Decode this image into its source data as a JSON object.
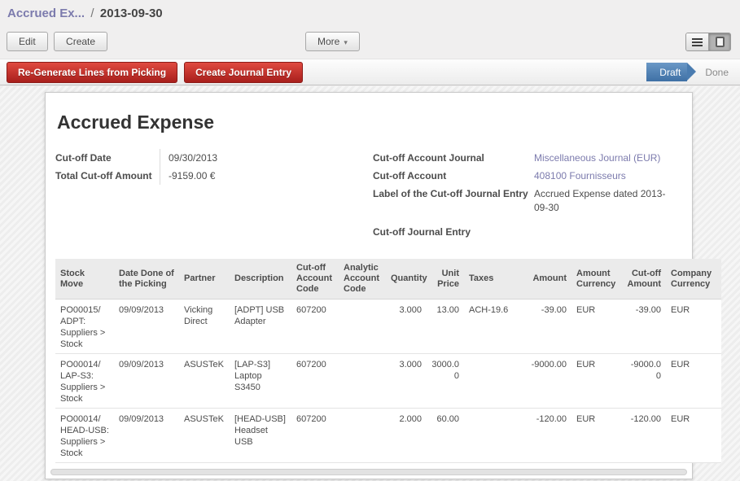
{
  "breadcrumb": {
    "parent": "Accrued Ex...",
    "separator": "/",
    "current": "2013-09-30"
  },
  "toolbar": {
    "edit_label": "Edit",
    "create_label": "Create",
    "more_label": "More"
  },
  "icons": {
    "dropdown_caret": "▾",
    "list_view": "hamburger-lines",
    "form_view": "rounded-square",
    "status_arrow": "right-chevron"
  },
  "actions": {
    "regenerate_label": "Re-Generate Lines from Picking",
    "create_journal_label": "Create Journal Entry"
  },
  "statusbar": {
    "states": [
      {
        "label": "Draft",
        "active": true
      },
      {
        "label": "Done",
        "active": false
      }
    ]
  },
  "form": {
    "title": "Accrued Expense",
    "fields_left": [
      {
        "label": "Cut-off Date",
        "value": "09/30/2013"
      },
      {
        "label": "Total Cut-off Amount",
        "value": "-9159.00 €"
      }
    ],
    "fields_right": [
      {
        "label": "Cut-off Account Journal",
        "value": "Miscellaneous Journal (EUR)",
        "link": true
      },
      {
        "label": "Cut-off Account",
        "value": "408100 Fournisseurs",
        "link": true
      },
      {
        "label": "Label of the Cut-off Journal Entry",
        "value": "Accrued Expense dated 2013-09-30",
        "link": false
      },
      {
        "label": "Cut-off Journal Entry",
        "value": "",
        "link": false
      }
    ]
  },
  "table": {
    "columns": [
      {
        "label": "Stock Move",
        "align": "left",
        "width": 72
      },
      {
        "label": "Date Done of the Picking",
        "align": "left",
        "width": 80
      },
      {
        "label": "Partner",
        "align": "left",
        "width": 62
      },
      {
        "label": "Description",
        "align": "left",
        "width": 76
      },
      {
        "label": "Cut-off Account Code",
        "align": "left",
        "width": 58
      },
      {
        "label": "Analytic Account Code",
        "align": "left",
        "width": 58
      },
      {
        "label": "Quantity",
        "align": "right",
        "width": 50
      },
      {
        "label": "Unit Price",
        "align": "right",
        "width": 46
      },
      {
        "label": "Taxes",
        "align": "left",
        "width": 70
      },
      {
        "label": "Amount",
        "align": "right",
        "width": 62
      },
      {
        "label": "Amount Currency",
        "align": "left",
        "width": 62
      },
      {
        "label": "Cut-off Amount",
        "align": "right",
        "width": 54
      },
      {
        "label": "Company Currency",
        "align": "left",
        "width": 68
      }
    ],
    "rows": [
      [
        "PO00015/ADPT: Suppliers > Stock",
        "09/09/2013",
        "Vicking Direct",
        "[ADPT] USB Adapter",
        "607200",
        "",
        "3.000",
        "13.00",
        "ACH-19.6",
        "-39.00",
        "EUR",
        "-39.00",
        "EUR"
      ],
      [
        "PO00014/LAP-S3: Suppliers > Stock",
        "09/09/2013",
        "ASUSTeK",
        "[LAP-S3] Laptop S3450",
        "607200",
        "",
        "3.000",
        "3000.00",
        "",
        "-9000.00",
        "EUR",
        "-9000.00",
        "EUR"
      ],
      [
        "PO00014/HEAD-USB: Suppliers > Stock",
        "09/09/2013",
        "ASUSTeK",
        "[HEAD-USB] Headset USB",
        "607200",
        "",
        "2.000",
        "60.00",
        "",
        "-120.00",
        "EUR",
        "-120.00",
        "EUR"
      ]
    ]
  },
  "colors": {
    "accent_purple": "#7c7bad",
    "action_red": "#b52a24",
    "status_blue": "#4a7cb0"
  }
}
